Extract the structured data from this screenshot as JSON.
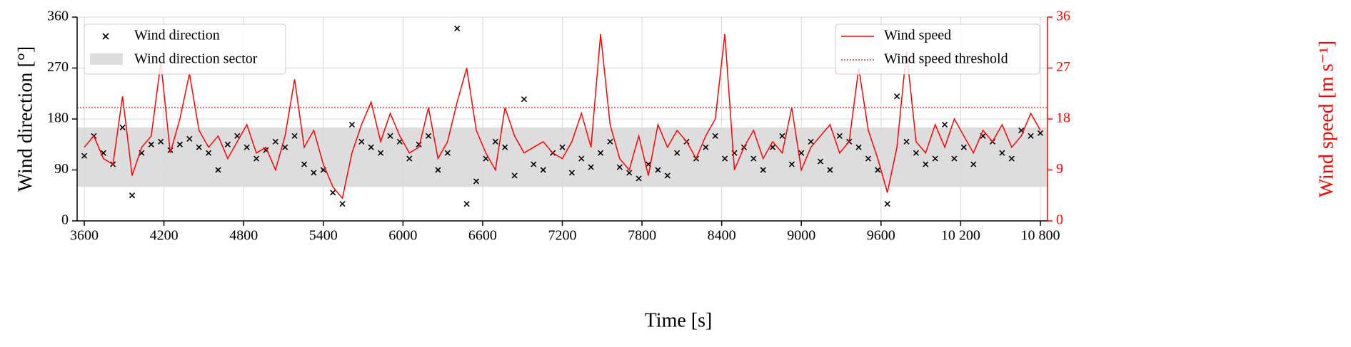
{
  "chart_data": {
    "type": "scatter-line",
    "xlabel": "Time [s]",
    "ylabel": "Wind direction [°]",
    "y2label": "Wind speed [m s⁻¹]",
    "xlim": [
      3546,
      10854
    ],
    "ylim": [
      0,
      360
    ],
    "y2lim": [
      0,
      36
    ],
    "xticks": [
      3600,
      4200,
      4800,
      5400,
      6000,
      6600,
      7200,
      7800,
      8400,
      9000,
      9600,
      {
        "value": 10200,
        "label": "10 200"
      },
      {
        "value": 10800,
        "label": "10 800"
      }
    ],
    "yticks": [
      0,
      90,
      180,
      270,
      360
    ],
    "y2ticks": [
      0,
      9,
      18,
      27,
      36
    ],
    "grid": true,
    "x": [
      3600,
      3672,
      3744,
      3816,
      3888,
      3960,
      4032,
      4104,
      4176,
      4248,
      4320,
      4392,
      4464,
      4536,
      4608,
      4680,
      4752,
      4824,
      4896,
      4968,
      5040,
      5112,
      5184,
      5256,
      5328,
      5400,
      5472,
      5544,
      5616,
      5688,
      5760,
      5832,
      5904,
      5976,
      6048,
      6120,
      6192,
      6264,
      6336,
      6408,
      6480,
      6552,
      6624,
      6696,
      6768,
      6840,
      6912,
      6984,
      7056,
      7128,
      7200,
      7272,
      7344,
      7416,
      7488,
      7560,
      7632,
      7704,
      7776,
      7848,
      7920,
      7992,
      8064,
      8136,
      8208,
      8280,
      8352,
      8424,
      8496,
      8568,
      8640,
      8712,
      8784,
      8856,
      8928,
      9000,
      9072,
      9144,
      9216,
      9288,
      9360,
      9432,
      9504,
      9576,
      9648,
      9720,
      9792,
      9864,
      9936,
      10008,
      10080,
      10152,
      10224,
      10296,
      10368,
      10440,
      10512,
      10584,
      10656,
      10728,
      10800
    ],
    "sector": {
      "name": "Wind direction sector",
      "range": [
        60,
        165
      ],
      "color": "#dddddd"
    },
    "threshold": {
      "name": "Wind speed threshold",
      "value": 20,
      "color": "#ff0000",
      "axis": "y2"
    },
    "series": [
      {
        "name": "Wind direction",
        "type": "scatter",
        "color": "#000000",
        "values": [
          115,
          150,
          120,
          100,
          165,
          45,
          120,
          135,
          140,
          125,
          135,
          145,
          130,
          120,
          90,
          135,
          150,
          130,
          110,
          125,
          140,
          130,
          150,
          100,
          85,
          90,
          50,
          30,
          170,
          140,
          130,
          120,
          150,
          140,
          110,
          135,
          150,
          90,
          120,
          340,
          30,
          70,
          110,
          140,
          130,
          80,
          215,
          100,
          90,
          120,
          130,
          85,
          110,
          95,
          120,
          140,
          95,
          85,
          75,
          100,
          90,
          80,
          120,
          140,
          110,
          130,
          150,
          110,
          120,
          130,
          110,
          90,
          130,
          150,
          100,
          120,
          140,
          105,
          90,
          150,
          140,
          130,
          110,
          90,
          30,
          220,
          140,
          120,
          100,
          110,
          170,
          110,
          130,
          100,
          150,
          140,
          120,
          110,
          160,
          150,
          155
        ]
      },
      {
        "name": "Wind speed",
        "type": "line",
        "axis": "y2",
        "color": "#ff0000",
        "values": [
          13,
          15,
          11,
          10,
          22,
          8,
          13,
          15,
          28,
          12,
          18,
          26,
          16,
          13,
          15,
          11,
          14,
          17,
          12,
          13,
          9,
          15,
          25,
          13,
          16,
          10,
          6,
          4,
          12,
          17,
          21,
          14,
          19,
          15,
          12,
          13,
          20,
          11,
          14,
          21,
          27,
          16,
          12,
          9,
          20,
          15,
          12,
          13,
          14,
          12,
          11,
          14,
          19,
          13,
          33,
          17,
          11,
          9,
          15,
          8,
          17,
          13,
          16,
          14,
          11,
          15,
          18,
          33,
          9,
          13,
          16,
          11,
          14,
          12,
          20,
          9,
          13,
          15,
          17,
          12,
          14,
          27,
          16,
          11,
          5,
          13,
          30,
          14,
          12,
          17,
          13,
          18,
          15,
          12,
          16,
          14,
          17,
          13,
          15,
          19,
          16
        ]
      }
    ]
  }
}
